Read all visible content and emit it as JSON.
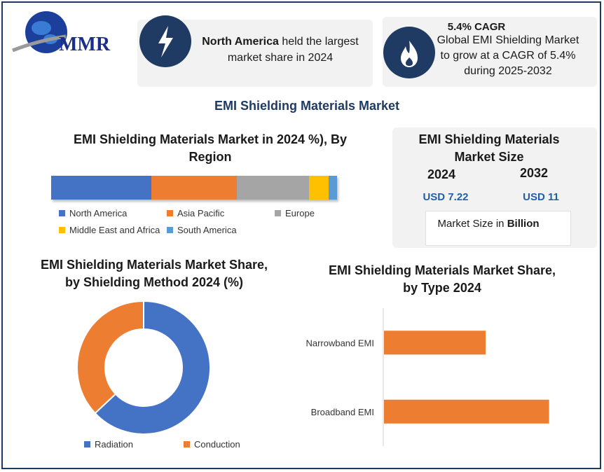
{
  "logo": {
    "text": "MMR"
  },
  "info_left": {
    "bold": "North America",
    "rest": " held the largest",
    "line2": "market share in 2024",
    "icon": "lightning-icon"
  },
  "info_right": {
    "title": "5.4% CAGR",
    "line1": "Global EMI Shielding Market",
    "line2": "to grow at a CAGR of 5.4%",
    "line3": "during 2025-2032",
    "icon": "flame-icon"
  },
  "main_title": "EMI Shielding Materials Market",
  "size_panel": {
    "title_line1": "EMI Shielding Materials",
    "title_line2": "Market Size",
    "year1": "2024",
    "year2": "2032",
    "value1": "USD 7.22",
    "value2": "USD 11",
    "note_prefix": "Market Size in ",
    "note_bold": "Billion"
  },
  "colors": {
    "north_america": "#4472c4",
    "asia_pacific": "#ed7d31",
    "europe": "#a5a5a5",
    "mea": "#ffc000",
    "south_america": "#5b9bd5",
    "navy": "#1f3a63",
    "value_blue": "#1f5fa8"
  },
  "chart_data": [
    {
      "type": "bar",
      "orientation": "stacked-horizontal",
      "title_line1": "EMI Shielding Materials Market in 2024 %), By",
      "title_line2": "Region",
      "series": [
        {
          "name": "North America",
          "values": [
            36
          ]
        },
        {
          "name": "Asia Pacific",
          "values": [
            31
          ]
        },
        {
          "name": "Europe",
          "values": [
            26
          ]
        },
        {
          "name": "Middle East and Africa",
          "values": [
            7
          ]
        },
        {
          "name": "South America",
          "values": [
            3
          ]
        }
      ],
      "legend": "bottom"
    },
    {
      "type": "pie",
      "style": "donut",
      "title_line1": "EMI Shielding Materials Market Share,",
      "title_line2": "by Shielding Method 2024 (%)",
      "labels": [
        "Radiation",
        "Conduction"
      ],
      "values": [
        63,
        37
      ],
      "colors": [
        "#4472c4",
        "#ed7d31"
      ],
      "legend": "bottom"
    },
    {
      "type": "bar",
      "orientation": "horizontal",
      "title_line1": "EMI Shielding Materials Market Share,",
      "title_line2": "by Type 2024",
      "categories": [
        "Narrowband EMI",
        "Broadband EMI"
      ],
      "values": [
        40,
        65
      ],
      "xlim": [
        0,
        80
      ],
      "color": "#ed7d31"
    }
  ]
}
